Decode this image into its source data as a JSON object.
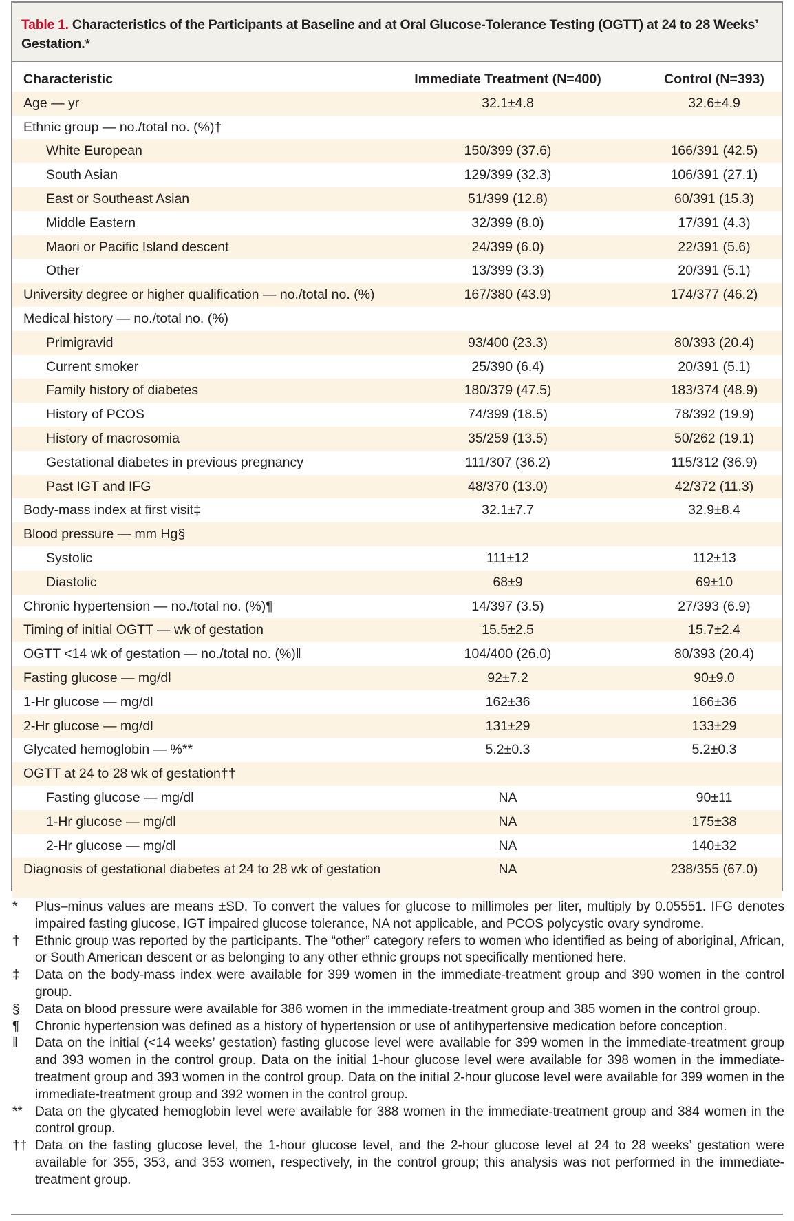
{
  "title": {
    "label": "Table 1.",
    "text": " Characteristics of the Participants at Baseline and at Oral Glucose-Tolerance Testing (OGTT) at 24 to 28 Weeks’ Gestation.*"
  },
  "columns": [
    "Characteristic",
    "Immediate Treatment (N=400)",
    "Control (N=393)"
  ],
  "rows": [
    {
      "k": "Age — yr",
      "a": "32.1±4.8",
      "b": "32.6±4.9",
      "indent": false
    },
    {
      "k": "Ethnic group — no./total no. (%)†",
      "a": "",
      "b": "",
      "indent": false
    },
    {
      "k": "White European",
      "a": "150/399 (37.6)",
      "b": "166/391 (42.5)",
      "indent": true
    },
    {
      "k": "South Asian",
      "a": "129/399 (32.3)",
      "b": "106/391 (27.1)",
      "indent": true
    },
    {
      "k": "East or Southeast Asian",
      "a": "51/399 (12.8)",
      "b": "60/391 (15.3)",
      "indent": true
    },
    {
      "k": "Middle Eastern",
      "a": "32/399 (8.0)",
      "b": "17/391 (4.3)",
      "indent": true
    },
    {
      "k": "Maori or Pacific Island descent",
      "a": "24/399 (6.0)",
      "b": "22/391 (5.6)",
      "indent": true
    },
    {
      "k": "Other",
      "a": "13/399 (3.3)",
      "b": "20/391 (5.1)",
      "indent": true
    },
    {
      "k": "University degree or higher qualification — no./total no. (%)",
      "a": "167/380 (43.9)",
      "b": "174/377 (46.2)",
      "indent": false
    },
    {
      "k": "Medical history — no./total no. (%)",
      "a": "",
      "b": "",
      "indent": false
    },
    {
      "k": "Primigravid",
      "a": "93/400 (23.3)",
      "b": "80/393 (20.4)",
      "indent": true
    },
    {
      "k": "Current smoker",
      "a": "25/390 (6.4)",
      "b": "20/391 (5.1)",
      "indent": true
    },
    {
      "k": "Family history of diabetes",
      "a": "180/379 (47.5)",
      "b": "183/374 (48.9)",
      "indent": true
    },
    {
      "k": "History of PCOS",
      "a": "74/399 (18.5)",
      "b": "78/392 (19.9)",
      "indent": true
    },
    {
      "k": "History of macrosomia",
      "a": "35/259 (13.5)",
      "b": "50/262 (19.1)",
      "indent": true
    },
    {
      "k": "Gestational diabetes in previous pregnancy",
      "a": "111/307 (36.2)",
      "b": "115/312 (36.9)",
      "indent": true
    },
    {
      "k": "Past IGT and IFG",
      "a": "48/370 (13.0)",
      "b": "42/372 (11.3)",
      "indent": true
    },
    {
      "k": "Body-mass index at first visit‡",
      "a": "32.1±7.7",
      "b": "32.9±8.4",
      "indent": false
    },
    {
      "k": "Blood pressure — mm Hg§",
      "a": "",
      "b": "",
      "indent": false
    },
    {
      "k": "Systolic",
      "a": "111±12",
      "b": "112±13",
      "indent": true
    },
    {
      "k": "Diastolic",
      "a": "68±9",
      "b": "69±10",
      "indent": true
    },
    {
      "k": "Chronic hypertension — no./total no. (%)¶",
      "a": "14/397 (3.5)",
      "b": "27/393 (6.9)",
      "indent": false
    },
    {
      "k": "Timing of initial OGTT — wk of gestation",
      "a": "15.5±2.5",
      "b": "15.7±2.4",
      "indent": false
    },
    {
      "k": "OGTT <14 wk of gestation — no./total no. (%)‖",
      "a": "104/400 (26.0)",
      "b": "80/393 (20.4)",
      "indent": false
    },
    {
      "k": "Fasting glucose — mg/dl",
      "a": "92±7.2",
      "b": "90±9.0",
      "indent": false
    },
    {
      "k": "1-Hr glucose — mg/dl",
      "a": "162±36",
      "b": "166±36",
      "indent": false
    },
    {
      "k": "2-Hr glucose — mg/dl",
      "a": "131±29",
      "b": "133±29",
      "indent": false
    },
    {
      "k": "Glycated hemoglobin — %**",
      "a": "5.2±0.3",
      "b": "5.2±0.3",
      "indent": false
    },
    {
      "k": "OGTT at 24 to 28 wk of gestation††",
      "a": "",
      "b": "",
      "indent": false
    },
    {
      "k": "Fasting glucose — mg/dl",
      "a": "NA",
      "b": "90±11",
      "indent": true
    },
    {
      "k": "1-Hr glucose — mg/dl",
      "a": "NA",
      "b": "175±38",
      "indent": true
    },
    {
      "k": "2-Hr glucose — mg/dl",
      "a": "NA",
      "b": "140±32",
      "indent": true
    },
    {
      "k": "Diagnosis of gestational diabetes at 24 to 28 wk of gestation",
      "a": "NA",
      "b": "238/355 (67.0)",
      "indent": false
    }
  ],
  "footnotes": [
    {
      "s": "*",
      "t": "Plus–minus values are means ±SD. To convert the values for glucose to millimoles per liter, multiply by 0.05551. IFG denotes impaired fasting glucose, IGT impaired glucose tolerance, NA not applicable, and PCOS polycystic ovary syndrome."
    },
    {
      "s": "†",
      "t": "Ethnic group was reported by the participants. The “other” category refers to women who identified as being of aboriginal, African, or South American descent or as belonging to any other ethnic groups not specifically mentioned here."
    },
    {
      "s": "‡",
      "t": "Data on the body-mass index were available for 399 women in the immediate-treatment group and 390 women in the control group."
    },
    {
      "s": "§",
      "t": "Data on blood pressure were available for 386 women in the immediate-treatment group and 385 women in the control group."
    },
    {
      "s": "¶",
      "t": "Chronic hypertension was defined as a history of hypertension or use of antihypertensive medication before conception."
    },
    {
      "s": "‖",
      "t": "Data on the initial (<14 weeks’ gestation) fasting glucose level were available for 399 women in the immediate-treatment group and 393 women in the control group. Data on the initial 1-hour glucose level were available for 398 women in the immediate-treatment group and 393 women in the control group. Data on the initial 2-hour glucose level were available for 399 women in the immediate-treatment group and 392 women in the control group."
    },
    {
      "s": "**",
      "t": "Data on the glycated hemoglobin level were available for 388 women in the immediate-treatment group and 384 women in the control group."
    },
    {
      "s": "††",
      "t": "Data on the fasting glucose level, the 1-hour glucose level, and the 2-hour glucose level at 24 to 28 weeks’ gestation were available for 355, 353, and 353 women, respectively, in the control group; this analysis was not performed in the immediate-treatment group."
    }
  ],
  "colors": {
    "title_label": "#c8102e",
    "stripe": "#fcf3e2",
    "header_bg": "#f2f0ea"
  }
}
